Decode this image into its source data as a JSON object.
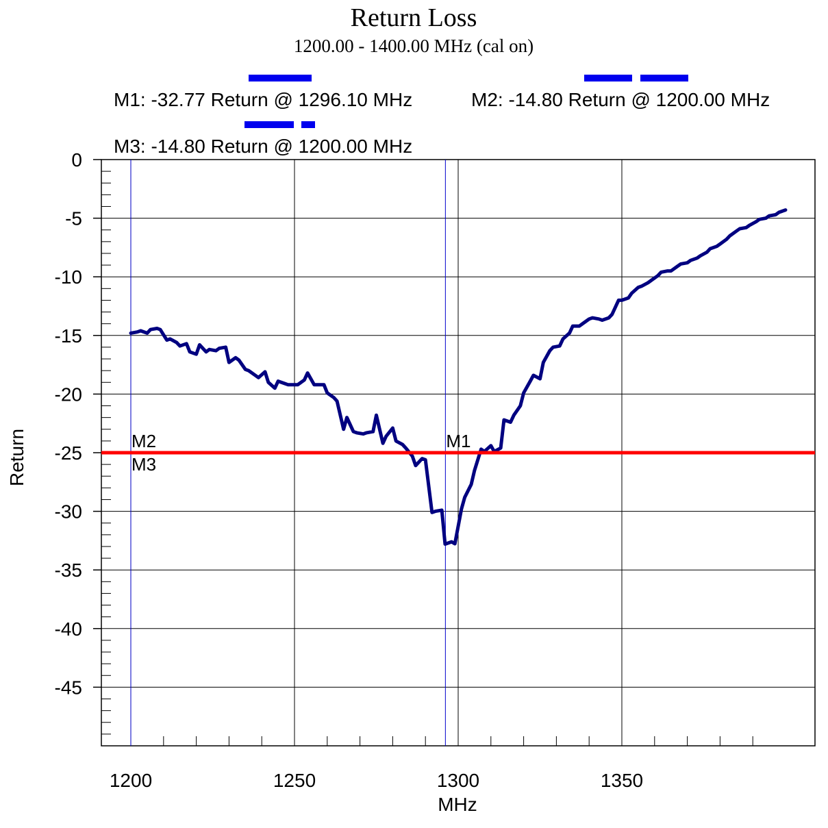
{
  "chart_data": {
    "type": "line",
    "title": "Return Loss",
    "subtitle": "1200.00 - 1400.00 MHz (cal on)",
    "xlabel": "MHz",
    "ylabel": "Return",
    "xlim": [
      1191,
      1409
    ],
    "ylim": [
      -50,
      0
    ],
    "x_ticks": [
      1200,
      1250,
      1300,
      1350
    ],
    "y_ticks": [
      0,
      -5,
      -10,
      -15,
      -20,
      -25,
      -30,
      -35,
      -40,
      -45
    ],
    "grid": true,
    "series": [
      {
        "color": "#000080",
        "x": [
          1200,
          1202,
          1203,
          1205,
          1206,
          1208,
          1209,
          1211,
          1212,
          1214,
          1215,
          1217,
          1218,
          1220,
          1221,
          1223,
          1224,
          1226,
          1227,
          1229,
          1230,
          1232,
          1233,
          1235,
          1236,
          1238,
          1239,
          1241,
          1242,
          1244,
          1245,
          1247,
          1248,
          1250,
          1251,
          1253,
          1254,
          1256,
          1257,
          1259,
          1260,
          1262,
          1263,
          1265,
          1266,
          1268,
          1269,
          1271,
          1272,
          1274,
          1275,
          1277,
          1278,
          1280,
          1281,
          1283,
          1284,
          1286,
          1287,
          1289,
          1290,
          1292,
          1293,
          1295,
          1296,
          1298,
          1299,
          1301,
          1302,
          1304,
          1305,
          1307,
          1308,
          1310,
          1311,
          1313,
          1314,
          1316,
          1317,
          1319,
          1320,
          1322,
          1323,
          1325,
          1326,
          1328,
          1329,
          1331,
          1332,
          1334,
          1335,
          1337,
          1338,
          1340,
          1341,
          1343,
          1344,
          1346,
          1347,
          1349,
          1350,
          1352,
          1353,
          1355,
          1356,
          1358,
          1359,
          1361,
          1362,
          1364,
          1365,
          1367,
          1368,
          1370,
          1371,
          1373,
          1374,
          1376,
          1377,
          1379,
          1380,
          1382,
          1383,
          1385,
          1386,
          1388,
          1389,
          1391,
          1392,
          1394,
          1395,
          1397,
          1398,
          1400
        ],
        "y": [
          -14.8,
          -14.7,
          -14.6,
          -14.8,
          -14.5,
          -14.4,
          -14.5,
          -15.4,
          -15.3,
          -15.6,
          -15.9,
          -15.7,
          -16.4,
          -16.6,
          -15.8,
          -16.4,
          -16.2,
          -16.3,
          -16.1,
          -16.0,
          -17.3,
          -16.9,
          -17.1,
          -17.9,
          -18.0,
          -18.4,
          -18.6,
          -18.1,
          -19.0,
          -19.5,
          -18.9,
          -19.1,
          -19.2,
          -19.2,
          -19.2,
          -18.8,
          -18.2,
          -19.2,
          -19.2,
          -19.2,
          -19.9,
          -20.3,
          -20.6,
          -23.0,
          -22.0,
          -23.2,
          -23.3,
          -23.4,
          -23.3,
          -23.2,
          -21.8,
          -24.2,
          -23.6,
          -22.9,
          -24.0,
          -24.3,
          -24.6,
          -25.3,
          -26.1,
          -25.5,
          -25.6,
          -30.1,
          -30.0,
          -29.9,
          -32.8,
          -32.6,
          -32.77,
          -29.8,
          -28.8,
          -27.7,
          -26.5,
          -24.7,
          -24.9,
          -24.4,
          -24.9,
          -24.6,
          -22.2,
          -22.4,
          -21.8,
          -21.0,
          -19.9,
          -18.9,
          -18.4,
          -18.7,
          -17.3,
          -16.3,
          -16.0,
          -15.9,
          -15.3,
          -14.8,
          -14.2,
          -14.2,
          -14.0,
          -13.6,
          -13.5,
          -13.6,
          -13.7,
          -13.5,
          -13.2,
          -12.0,
          -12.0,
          -11.8,
          -11.4,
          -10.9,
          -10.8,
          -10.5,
          -10.3,
          -9.9,
          -9.6,
          -9.5,
          -9.5,
          -9.1,
          -8.9,
          -8.8,
          -8.6,
          -8.4,
          -8.2,
          -7.9,
          -7.6,
          -7.4,
          -7.2,
          -6.8,
          -6.5,
          -6.1,
          -5.9,
          -5.8,
          -5.6,
          -5.3,
          -5.1,
          -5.0,
          -4.8,
          -4.7,
          -4.5,
          -4.3
        ]
      }
    ],
    "limit_line": {
      "y": -25,
      "color": "#ff0000"
    },
    "markers": [
      {
        "name": "M1",
        "x": 1296.1,
        "value": -32.77,
        "readout": "M1: -32.77 Return @ 1296.10 MHz"
      },
      {
        "name": "M2",
        "x": 1200.0,
        "value": -14.8,
        "readout": "M2: -14.80 Return @ 1200.00 MHz"
      },
      {
        "name": "M3",
        "x": 1200.0,
        "value": -14.8,
        "readout": "M3: -14.80 Return @ 1200.00 MHz"
      }
    ],
    "colors": {
      "trace": "#000080",
      "limit": "#ff0000",
      "marker_line": "#0000cc",
      "legend_dash": "#0000ee",
      "grid": "#000000"
    }
  }
}
